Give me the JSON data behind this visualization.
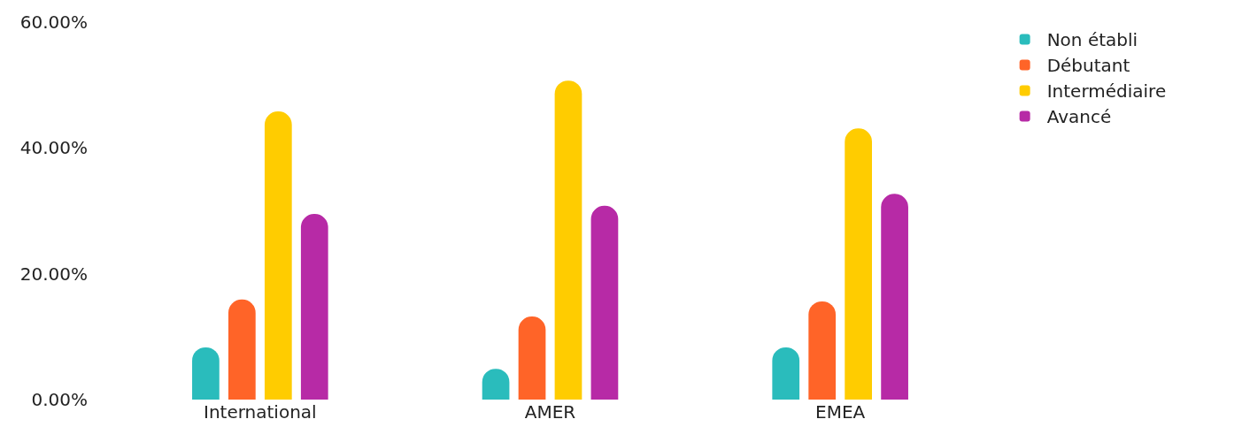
{
  "chart_data": {
    "type": "bar",
    "categories": [
      "International",
      "AMER",
      "EMEA"
    ],
    "series": [
      {
        "name": "Non établi",
        "color": "#2abcbc",
        "values": [
          8.3,
          4.9,
          8.3
        ]
      },
      {
        "name": "Débutant",
        "color": "#ff6428",
        "values": [
          15.9,
          13.2,
          15.6
        ]
      },
      {
        "name": "Intermédiaire",
        "color": "#ffcc00",
        "values": [
          45.8,
          50.7,
          43.1
        ]
      },
      {
        "name": "Avancé",
        "color": "#b72aa6",
        "values": [
          29.5,
          30.8,
          32.7
        ]
      }
    ],
    "ylim": [
      0,
      60
    ],
    "yticks": [
      {
        "value": 0,
        "label": "0.00%"
      },
      {
        "value": 20,
        "label": "20.00%"
      },
      {
        "value": 40,
        "label": "40.00%"
      },
      {
        "value": 60,
        "label": "60.00%"
      }
    ],
    "grid": false,
    "legend": "top right"
  }
}
